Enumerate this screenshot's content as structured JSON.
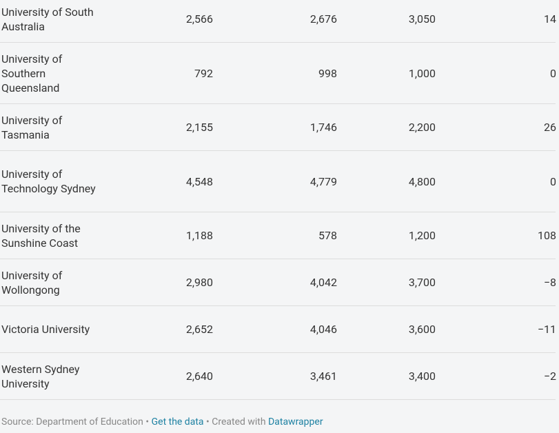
{
  "table": {
    "rows": [
      [
        "University of South Australia",
        "2,566",
        "2,676",
        "3,050",
        "14"
      ],
      [
        "University of Southern Queensland",
        "792",
        "998",
        "1,000",
        "0"
      ],
      [
        "University of Tasmania",
        "2,155",
        "1,746",
        "2,200",
        "26"
      ],
      [
        "University of Technology Sydney",
        "4,548",
        "4,779",
        "4,800",
        "0"
      ],
      [
        "University of the Sunshine Coast",
        "1,188",
        "578",
        "1,200",
        "108"
      ],
      [
        "University of Wollongong",
        "2,980",
        "4,042",
        "3,700",
        "−8"
      ],
      [
        "Victoria University",
        "2,652",
        "4,046",
        "3,600",
        "−11"
      ],
      [
        "Western Sydney University",
        "2,640",
        "3,461",
        "3,400",
        "−2"
      ]
    ]
  },
  "footer": {
    "source": "Source: Department of Education",
    "separator": "•",
    "get_data": "Get the data",
    "created_with": "Created with",
    "datawrapper": "Datawrapper"
  }
}
